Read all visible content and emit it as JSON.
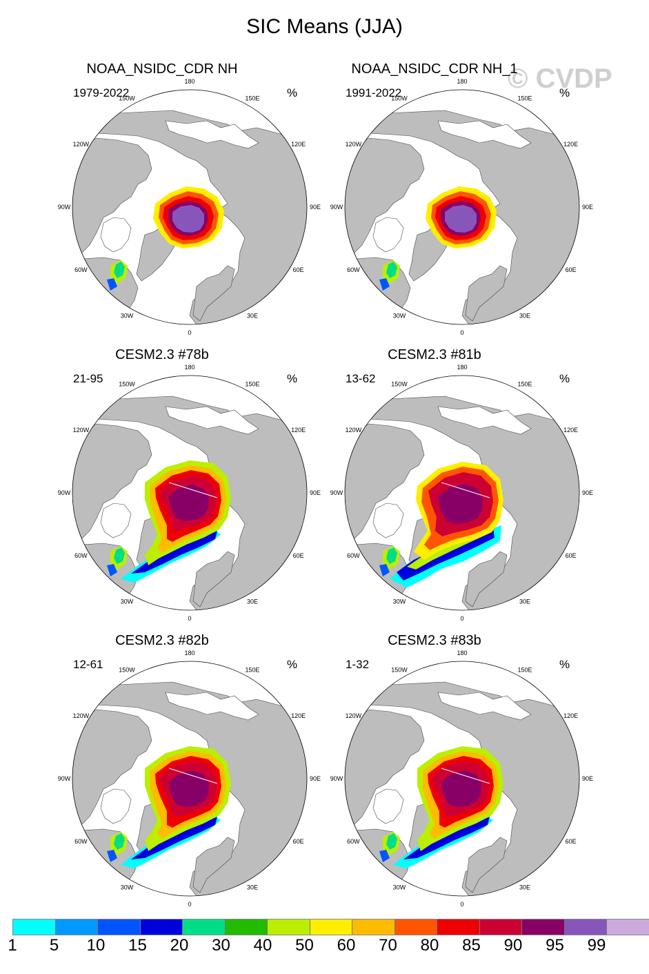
{
  "title": "SIC Means (JJA)",
  "watermark": "© CVDP",
  "lon_labels": [
    "180",
    "150E",
    "120E",
    "90E",
    "60E",
    "30E",
    "0",
    "30W",
    "60W",
    "90W",
    "120W",
    "150W"
  ],
  "panels": [
    {
      "title": "NOAA_NSIDC_CDR NH",
      "period": "1979-2022",
      "unit": "%",
      "variant": "obs"
    },
    {
      "title": "NOAA_NSIDC_CDR NH_1",
      "period": "1991-2022",
      "unit": "%",
      "variant": "obs"
    },
    {
      "title": "CESM2.3 #78b",
      "period": "21-95",
      "unit": "%",
      "variant": "model"
    },
    {
      "title": "CESM2.3 #81b",
      "period": "13-62",
      "unit": "%",
      "variant": "model-wide"
    },
    {
      "title": "CESM2.3 #82b",
      "period": "12-61",
      "unit": "%",
      "variant": "model"
    },
    {
      "title": "CESM2.3 #83b",
      "period": "1-32",
      "unit": "%",
      "variant": "model"
    }
  ],
  "colorbar": {
    "colors": [
      "#00ffff",
      "#0099ff",
      "#0055ff",
      "#0000dd",
      "#00dd88",
      "#22bb00",
      "#bbee00",
      "#ffee00",
      "#ffbb00",
      "#ff5500",
      "#ee0000",
      "#cc0033",
      "#880066",
      "#8855bb",
      "#ccaadd"
    ],
    "labels": [
      "1",
      "5",
      "10",
      "15",
      "20",
      "30",
      "40",
      "50",
      "60",
      "70",
      "80",
      "85",
      "90",
      "95",
      "99"
    ]
  }
}
